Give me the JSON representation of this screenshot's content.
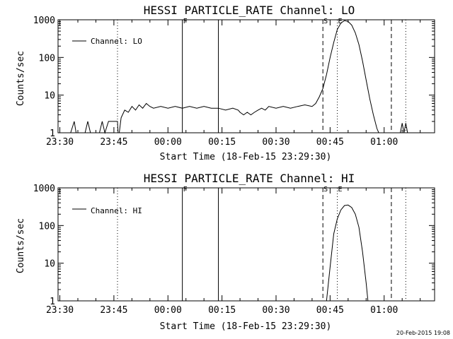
{
  "chart_data": [
    {
      "type": "line",
      "title": "HESSI PARTICLE_RATE Channel: LO",
      "xlabel": "Start Time (18-Feb-15 23:29:30)",
      "ylabel": "Counts/sec",
      "yscale": "log",
      "ylim": [
        1,
        1000
      ],
      "xlim": [
        "23:29:30",
        "01:14:00"
      ],
      "x_ticks": [
        "23:30",
        "23:45",
        "00:00",
        "00:15",
        "00:30",
        "00:45",
        "01:00"
      ],
      "y_ticks": [
        "1",
        "10",
        "100",
        "1000"
      ],
      "grid": false,
      "legend_position": "top-left",
      "series": [
        {
          "name": "Channel: LO",
          "points": [
            [
              "23:33:00",
              1
            ],
            [
              "23:34:00",
              2
            ],
            [
              "23:34:30",
              1
            ],
            [
              "23:37:00",
              1
            ],
            [
              "23:37:45",
              2
            ],
            [
              "23:38:30",
              1
            ],
            [
              "23:41:00",
              1
            ],
            [
              "23:41:45",
              2
            ],
            [
              "23:42:30",
              1
            ],
            [
              "23:43:30",
              2
            ],
            [
              "23:46:00",
              2
            ],
            [
              "23:46:10",
              1
            ],
            [
              "23:46:30",
              1
            ],
            [
              "23:47:00",
              2.5
            ],
            [
              "23:48:00",
              4
            ],
            [
              "23:49:00",
              3.5
            ],
            [
              "23:50:00",
              5
            ],
            [
              "23:51:00",
              4
            ],
            [
              "23:52:00",
              5.5
            ],
            [
              "23:53:00",
              4.5
            ],
            [
              "23:54:00",
              6
            ],
            [
              "23:55:00",
              5
            ],
            [
              "23:56:00",
              4.5
            ],
            [
              "23:58:00",
              5
            ],
            [
              "00:00:00",
              4.5
            ],
            [
              "00:02:00",
              5
            ],
            [
              "00:04:00",
              4.5
            ],
            [
              "00:06:00",
              5
            ],
            [
              "00:08:00",
              4.5
            ],
            [
              "00:10:00",
              5
            ],
            [
              "00:12:00",
              4.5
            ],
            [
              "00:14:00",
              4.5
            ],
            [
              "00:16:00",
              4
            ],
            [
              "00:18:00",
              4.5
            ],
            [
              "00:19:30",
              4
            ],
            [
              "00:20:00",
              3.5
            ],
            [
              "00:21:00",
              3
            ],
            [
              "00:22:00",
              3.5
            ],
            [
              "00:23:00",
              3
            ],
            [
              "00:24:00",
              3.5
            ],
            [
              "00:25:00",
              4
            ],
            [
              "00:26:00",
              4.5
            ],
            [
              "00:27:00",
              4
            ],
            [
              "00:28:00",
              5
            ],
            [
              "00:30:00",
              4.5
            ],
            [
              "00:32:00",
              5
            ],
            [
              "00:34:00",
              4.5
            ],
            [
              "00:36:00",
              5
            ],
            [
              "00:38:00",
              5.5
            ],
            [
              "00:40:00",
              5
            ],
            [
              "00:41:00",
              6
            ],
            [
              "00:42:00",
              9
            ],
            [
              "00:43:00",
              15
            ],
            [
              "00:44:00",
              35
            ],
            [
              "00:45:00",
              100
            ],
            [
              "00:46:00",
              250
            ],
            [
              "00:47:00",
              550
            ],
            [
              "00:48:00",
              820
            ],
            [
              "00:49:00",
              950
            ],
            [
              "00:50:00",
              900
            ],
            [
              "00:51:00",
              720
            ],
            [
              "00:52:00",
              450
            ],
            [
              "00:53:00",
              220
            ],
            [
              "00:54:00",
              80
            ],
            [
              "00:55:00",
              25
            ],
            [
              "00:56:00",
              8
            ],
            [
              "00:57:00",
              3
            ],
            [
              "00:58:00",
              1.3
            ],
            [
              "00:58:30",
              1
            ],
            [
              "01:04:30",
              1
            ],
            [
              "01:05:00",
              1.8
            ],
            [
              "01:05:30",
              1
            ],
            [
              "01:06:00",
              1.8
            ],
            [
              "01:06:30",
              1
            ]
          ]
        }
      ],
      "markers": [
        {
          "time": "23:46:00",
          "style": "dotted",
          "label": ""
        },
        {
          "time": "00:04:00",
          "style": "solid",
          "label": "F"
        },
        {
          "time": "00:14:00",
          "style": "solid",
          "label": ""
        },
        {
          "time": "00:43:00",
          "style": "dashed",
          "label": "S"
        },
        {
          "time": "00:47:00",
          "style": "dotted",
          "label": "E"
        },
        {
          "time": "01:02:00",
          "style": "dashed",
          "label": ""
        },
        {
          "time": "01:06:00",
          "style": "dotted",
          "label": ""
        }
      ]
    },
    {
      "type": "line",
      "title": "HESSI PARTICLE_RATE Channel: HI",
      "xlabel": "Start Time (18-Feb-15 23:29:30)",
      "ylabel": "Counts/sec",
      "yscale": "log",
      "ylim": [
        1,
        1000
      ],
      "xlim": [
        "23:29:30",
        "01:14:00"
      ],
      "x_ticks": [
        "23:30",
        "23:45",
        "00:00",
        "00:15",
        "00:30",
        "00:45",
        "01:00"
      ],
      "y_ticks": [
        "1",
        "10",
        "100",
        "1000"
      ],
      "grid": false,
      "legend_position": "top-left",
      "series": [
        {
          "name": "Channel: HI",
          "points": [
            [
              "00:44:00",
              1
            ],
            [
              "00:45:00",
              8
            ],
            [
              "00:46:00",
              60
            ],
            [
              "00:47:00",
              150
            ],
            [
              "00:48:00",
              260
            ],
            [
              "00:49:00",
              340
            ],
            [
              "00:50:00",
              350
            ],
            [
              "00:51:00",
              300
            ],
            [
              "00:52:00",
              200
            ],
            [
              "00:53:00",
              90
            ],
            [
              "00:54:00",
              20
            ],
            [
              "00:55:00",
              3
            ],
            [
              "00:55:30",
              1
            ]
          ]
        }
      ],
      "markers": [
        {
          "time": "23:46:00",
          "style": "dotted",
          "label": ""
        },
        {
          "time": "00:04:00",
          "style": "solid",
          "label": "F"
        },
        {
          "time": "00:14:00",
          "style": "solid",
          "label": ""
        },
        {
          "time": "00:43:00",
          "style": "dashed",
          "label": "S"
        },
        {
          "time": "00:47:00",
          "style": "dotted",
          "label": "E"
        },
        {
          "time": "01:02:00",
          "style": "dashed",
          "label": ""
        },
        {
          "time": "01:06:00",
          "style": "dotted",
          "label": ""
        }
      ]
    }
  ],
  "footer": {
    "timestamp": "20-Feb-2015 19:08"
  }
}
